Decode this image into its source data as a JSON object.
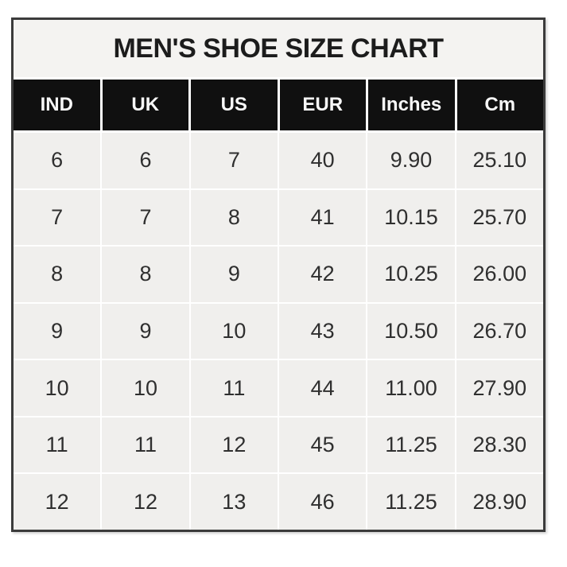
{
  "title": "MEN'S SHOE SIZE CHART",
  "chart_data": {
    "type": "table",
    "title": "MEN'S SHOE SIZE CHART",
    "columns": [
      "IND",
      "UK",
      "US",
      "EUR",
      "Inches",
      "Cm"
    ],
    "rows": [
      [
        "6",
        "6",
        "7",
        "40",
        "9.90",
        "25.10"
      ],
      [
        "7",
        "7",
        "8",
        "41",
        "10.15",
        "25.70"
      ],
      [
        "8",
        "8",
        "9",
        "42",
        "10.25",
        "26.00"
      ],
      [
        "9",
        "9",
        "10",
        "43",
        "10.50",
        "26.70"
      ],
      [
        "10",
        "10",
        "11",
        "44",
        "11.00",
        "27.90"
      ],
      [
        "11",
        "11",
        "12",
        "45",
        "11.25",
        "28.30"
      ],
      [
        "12",
        "12",
        "13",
        "46",
        "11.25",
        "28.90"
      ]
    ]
  },
  "colors": {
    "page_bg": "#ffffff",
    "border": "#3b3b3b",
    "title_bg": "#f4f3f1",
    "header_bg": "#101010",
    "header_text": "#f7f7f7",
    "cell_bg": "#f0efed",
    "cell_text": "#2f2f2f",
    "grid_line": "#ffffff"
  }
}
